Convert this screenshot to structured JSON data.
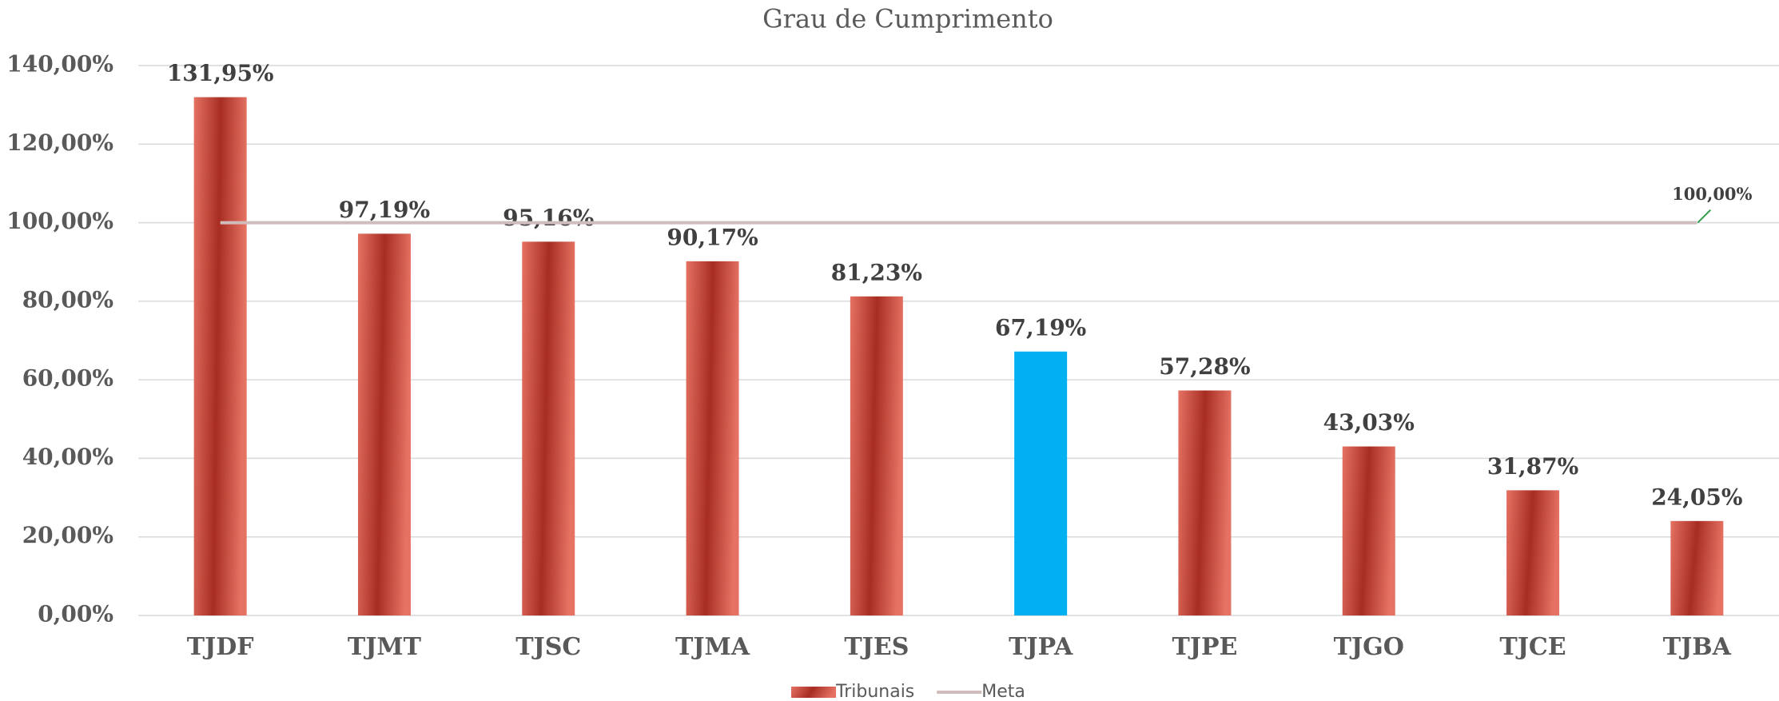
{
  "chart_data": {
    "type": "bar",
    "title": "Grau de Cumprimento",
    "categories": [
      "TJDF",
      "TJMT",
      "TJSC",
      "TJMA",
      "TJES",
      "TJPA",
      "TJPE",
      "TJGO",
      "TJCE",
      "TJBA"
    ],
    "series": [
      {
        "name": "Tribunais",
        "color": "#b8392b",
        "colors": [
          "#b8392b",
          "#b8392b",
          "#b8392b",
          "#b8392b",
          "#b8392b",
          "#00b0f0",
          "#b8392b",
          "#b8392b",
          "#b8392b",
          "#b8392b"
        ],
        "values": [
          131.95,
          97.19,
          95.16,
          90.17,
          81.23,
          67.19,
          57.28,
          43.03,
          31.87,
          24.05
        ],
        "value_labels": [
          "131,95%",
          "97,19%",
          "95,16%",
          "90,17%",
          "81,23%",
          "67,19%",
          "57,28%",
          "43,03%",
          "31,87%",
          "24,05%"
        ]
      },
      {
        "name": "Meta",
        "type": "line",
        "color": "#d0bcbc",
        "values": [
          100,
          100,
          100,
          100,
          100,
          100,
          100,
          100,
          100,
          100
        ],
        "value_labels": [
          null,
          null,
          null,
          null,
          null,
          null,
          null,
          null,
          null,
          "100,00%"
        ]
      }
    ],
    "ylim": [
      0,
      140
    ],
    "yticks": [
      {
        "value": 0,
        "label": "0,00%"
      },
      {
        "value": 20,
        "label": "20,00%"
      },
      {
        "value": 40,
        "label": "40,00%"
      },
      {
        "value": 60,
        "label": "60,00%"
      },
      {
        "value": 80,
        "label": "80,00%"
      },
      {
        "value": 100,
        "label": "100,00%"
      },
      {
        "value": 120,
        "label": "120,00%"
      },
      {
        "value": 140,
        "label": "140,00%"
      }
    ],
    "grid": true,
    "legend": "bottom"
  }
}
